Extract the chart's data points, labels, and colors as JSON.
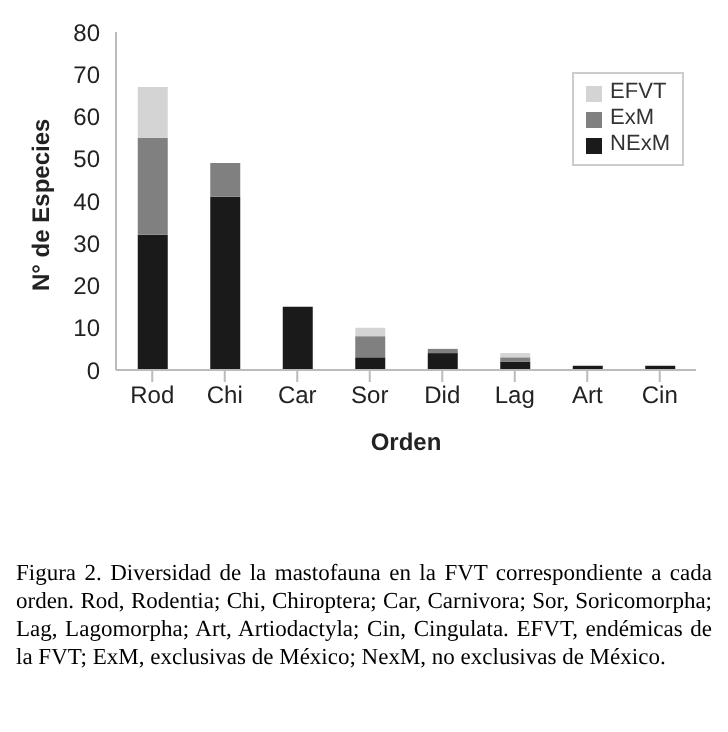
{
  "chart_data": {
    "type": "bar",
    "stacked": true,
    "xlabel": "Orden",
    "ylabel": "N° de Especies",
    "categories": [
      "Rod",
      "Chi",
      "Car",
      "Sor",
      "Did",
      "Lag",
      "Art",
      "Cin"
    ],
    "series": [
      {
        "name": "NExM",
        "color": "#1a1a1a",
        "values": [
          32,
          41,
          15,
          3,
          4,
          2,
          1,
          1
        ]
      },
      {
        "name": "ExM",
        "color": "#808080",
        "values": [
          23,
          8,
          0,
          5,
          1,
          1,
          0,
          0
        ]
      },
      {
        "name": "EFVT",
        "color": "#d4d4d4",
        "values": [
          12,
          0,
          0,
          2,
          0,
          1,
          0,
          0
        ]
      }
    ],
    "ylim": [
      0,
      80
    ],
    "yticks": [
      0,
      10,
      20,
      30,
      40,
      50,
      60,
      70,
      80
    ],
    "grid": false,
    "legend": "top right",
    "annotations": [
      "Figura 2. Diversidad de la mastofauna en la FVT correspondiente a cada orden. Rod, Rodentia; Chi, Chiroptera; Car, Carnivora; Sor, Soricomorpha; Lag, Lagomorpha; Art, Artiodactyla; Cin, Cingulata. EFVT, endémicas de la FVT; ExM, exclusivas de México; NexM, no exclusivas de México."
    ]
  }
}
